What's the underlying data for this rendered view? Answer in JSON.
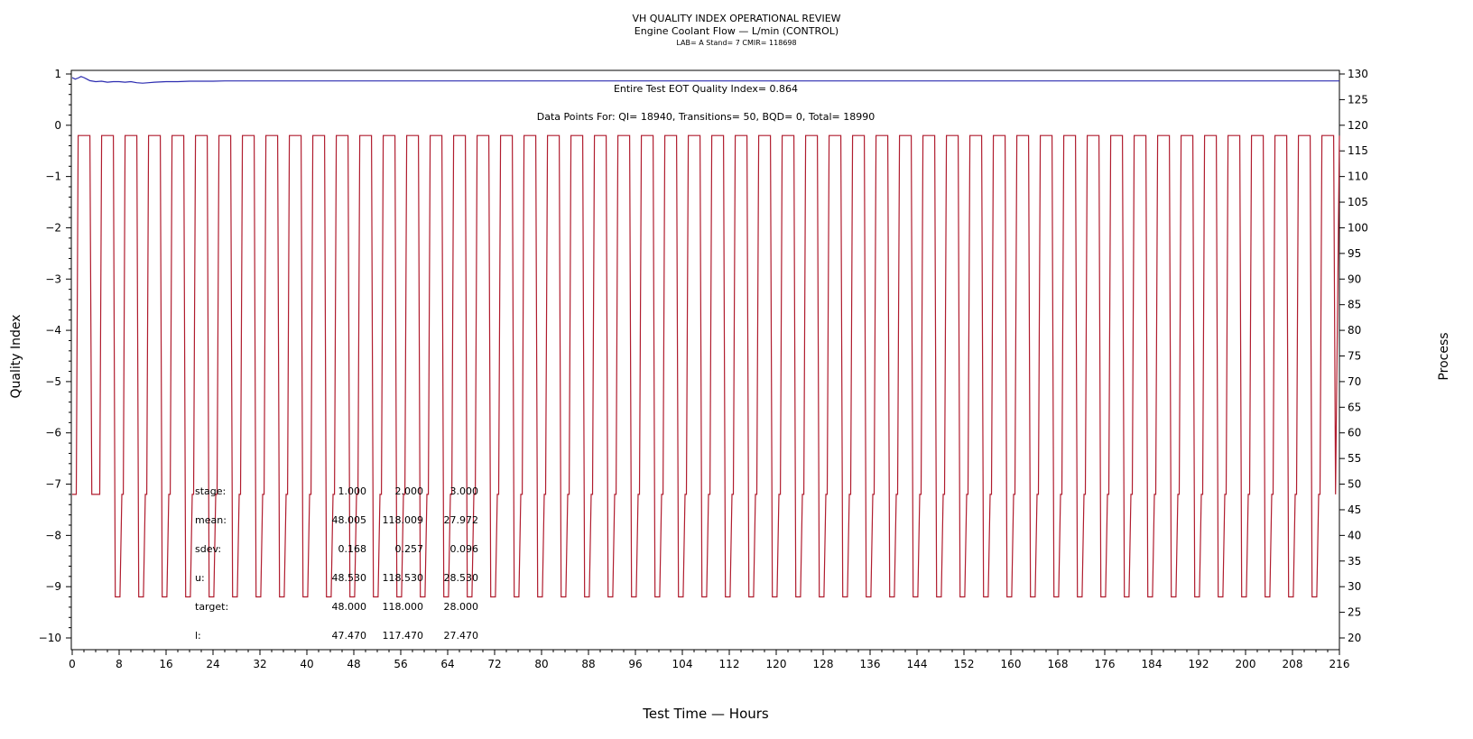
{
  "header": {
    "title": "VH QUALITY INDEX OPERATIONAL REVIEW",
    "subtitle": "Engine Coolant Flow — L/min (CONTROL)",
    "info": "LAB= A Stand= 7 CMIR= 118698"
  },
  "annotations": {
    "eot": "Entire Test EOT Quality Index=   0.864",
    "points": "Data Points For: QI= 18940, Transitions=    50, BQD=     0, Total= 18990"
  },
  "stats": {
    "labels": [
      "stage:",
      "mean:",
      "sdev:",
      "u:",
      "target:",
      "l:"
    ],
    "columns": [
      [
        "1.000",
        "48.005",
        "0.168",
        "48.530",
        "48.000",
        "47.470"
      ],
      [
        "2.000",
        "118.009",
        "0.257",
        "118.530",
        "118.000",
        "117.470"
      ],
      [
        "3.000",
        "27.972",
        "0.096",
        "28.530",
        "28.000",
        "27.470"
      ]
    ]
  },
  "chart_data": {
    "type": "line",
    "xlabel": "Test Time — Hours",
    "ylabel": "Quality Index",
    "y2label": "Process",
    "xlim": [
      0,
      216
    ],
    "ylim": [
      -10,
      1
    ],
    "y2lim": [
      20,
      130
    ],
    "xticks": [
      0,
      8,
      16,
      24,
      32,
      40,
      48,
      56,
      64,
      72,
      80,
      88,
      96,
      104,
      112,
      120,
      128,
      136,
      144,
      152,
      160,
      168,
      176,
      184,
      192,
      200,
      208,
      216
    ],
    "yticks": [
      1,
      0,
      -1,
      -2,
      -3,
      -4,
      -5,
      -6,
      -7,
      -8,
      -9,
      -10
    ],
    "y2ticks": [
      130,
      125,
      120,
      115,
      110,
      105,
      100,
      95,
      90,
      85,
      80,
      75,
      70,
      65,
      60,
      55,
      50,
      45,
      40,
      35,
      30,
      25,
      20
    ],
    "cycle_starts": [
      0.7,
      4.7,
      8.7,
      12.7,
      16.7,
      20.7,
      24.7,
      28.7,
      32.7,
      36.7,
      40.7,
      44.7,
      48.7,
      52.7,
      56.7,
      60.7,
      64.7,
      68.7,
      72.7,
      76.7,
      80.7,
      84.7,
      88.7,
      92.7,
      96.7,
      100.7,
      104.7,
      108.7,
      112.7,
      116.7,
      120.7,
      124.7,
      128.7,
      132.7,
      136.7,
      140.7,
      144.7,
      148.7,
      152.7,
      156.7,
      160.7,
      164.7,
      168.7,
      172.7,
      176.7,
      180.7,
      184.7,
      188.7,
      192.7,
      196.7,
      200.7,
      204.7,
      208.7,
      212.7
    ],
    "cold_soak_cycles": [
      1,
      2,
      3,
      4,
      5,
      6,
      7,
      8,
      9,
      10,
      11,
      12,
      13,
      14,
      15,
      16,
      17,
      18,
      19,
      20,
      21,
      22,
      23,
      24,
      25,
      26,
      27,
      28,
      29,
      30,
      31,
      32,
      33,
      34,
      35,
      36,
      37,
      38,
      39,
      40,
      41,
      42,
      43,
      44,
      45,
      46,
      47,
      48,
      49,
      50,
      51,
      52
    ],
    "series": [
      {
        "name": "Quality Index",
        "axis": "left",
        "color": "#2b2bb0",
        "x": [
          0,
          0.5,
          1,
          1.5,
          2,
          2.5,
          3,
          4,
          5,
          6,
          7,
          8,
          9,
          10,
          11,
          12,
          13,
          14,
          16,
          18,
          20,
          22,
          24,
          26,
          28,
          32,
          40,
          48,
          60,
          80,
          100,
          120,
          140,
          160,
          180,
          200,
          216
        ],
        "values": [
          0.93,
          0.9,
          0.92,
          0.95,
          0.93,
          0.9,
          0.87,
          0.85,
          0.86,
          0.84,
          0.85,
          0.85,
          0.84,
          0.85,
          0.83,
          0.82,
          0.83,
          0.84,
          0.85,
          0.85,
          0.86,
          0.86,
          0.86,
          0.864,
          0.864,
          0.864,
          0.864,
          0.864,
          0.864,
          0.864,
          0.864,
          0.864,
          0.864,
          0.864,
          0.864,
          0.864,
          0.864
        ]
      },
      {
        "name": "Engine Coolant Flow",
        "axis": "right",
        "color": "#b01c2e",
        "stage_levels": [
          48,
          118,
          28
        ],
        "stage_hours": [
          1.2,
          2.0,
          0.8
        ]
      }
    ]
  }
}
